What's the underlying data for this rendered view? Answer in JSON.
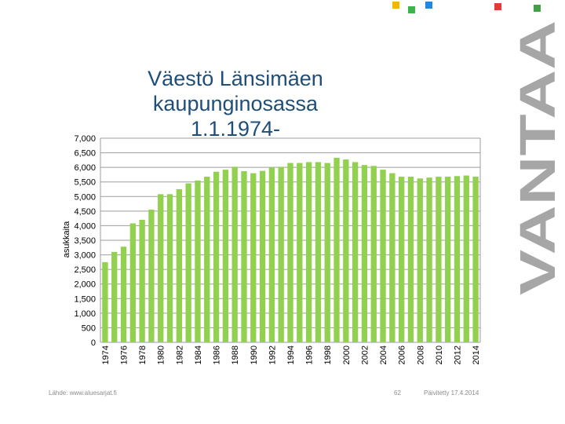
{
  "title_line1": "Väestö Länsimäen kaupunginosassa",
  "title_line2": "1.1.1974-",
  "brand": "VANTAA",
  "colors": {
    "title": "#1f4e79",
    "bar": "#92d050",
    "brand": "#a6a6a6",
    "footer": "#8c8c8c",
    "logo_squares": [
      "#f5b400",
      "#3cb44b",
      "#1e88e5",
      "#e53935",
      "#43a047"
    ]
  },
  "footer": {
    "source": "Lähde: www.aluesarjat.fi",
    "page": "62",
    "updated": "Päivitetty 17.4.2014"
  },
  "chart_data": {
    "type": "bar",
    "ylabel": "asukkaita",
    "xlabel": "",
    "ylim": [
      0,
      7000
    ],
    "y_ticks": [
      "0",
      "500",
      "1,000",
      "1,500",
      "2,000",
      "2,500",
      "3,000",
      "3,500",
      "4,000",
      "4,500",
      "5,000",
      "5,500",
      "6,000",
      "6,500",
      "7,000"
    ],
    "grid": "horizontal",
    "categories": [
      "1974",
      "1975",
      "1976",
      "1977",
      "1978",
      "1979",
      "1980",
      "1981",
      "1982",
      "1983",
      "1984",
      "1985",
      "1986",
      "1987",
      "1988",
      "1989",
      "1990",
      "1991",
      "1992",
      "1993",
      "1994",
      "1995",
      "1996",
      "1997",
      "1998",
      "1999",
      "2000",
      "2001",
      "2002",
      "2003",
      "2004",
      "2005",
      "2006",
      "2007",
      "2008",
      "2009",
      "2010",
      "2011",
      "2012",
      "2013",
      "2014"
    ],
    "x_tick_labels": [
      "1974",
      "1976",
      "1978",
      "1980",
      "1982",
      "1984",
      "1986",
      "1988",
      "1990",
      "1992",
      "1994",
      "1996",
      "1998",
      "2000",
      "2002",
      "2004",
      "2006",
      "2008",
      "2010",
      "2012",
      "2014"
    ],
    "values": [
      2750,
      3100,
      3280,
      4080,
      4200,
      4550,
      5080,
      5080,
      5250,
      5450,
      5550,
      5680,
      5850,
      5920,
      6020,
      5870,
      5800,
      5880,
      6000,
      6020,
      6150,
      6150,
      6180,
      6180,
      6150,
      6330,
      6270,
      6180,
      6080,
      6050,
      5920,
      5800,
      5680,
      5680,
      5620,
      5650,
      5680,
      5680,
      5700,
      5720,
      5680
    ]
  }
}
